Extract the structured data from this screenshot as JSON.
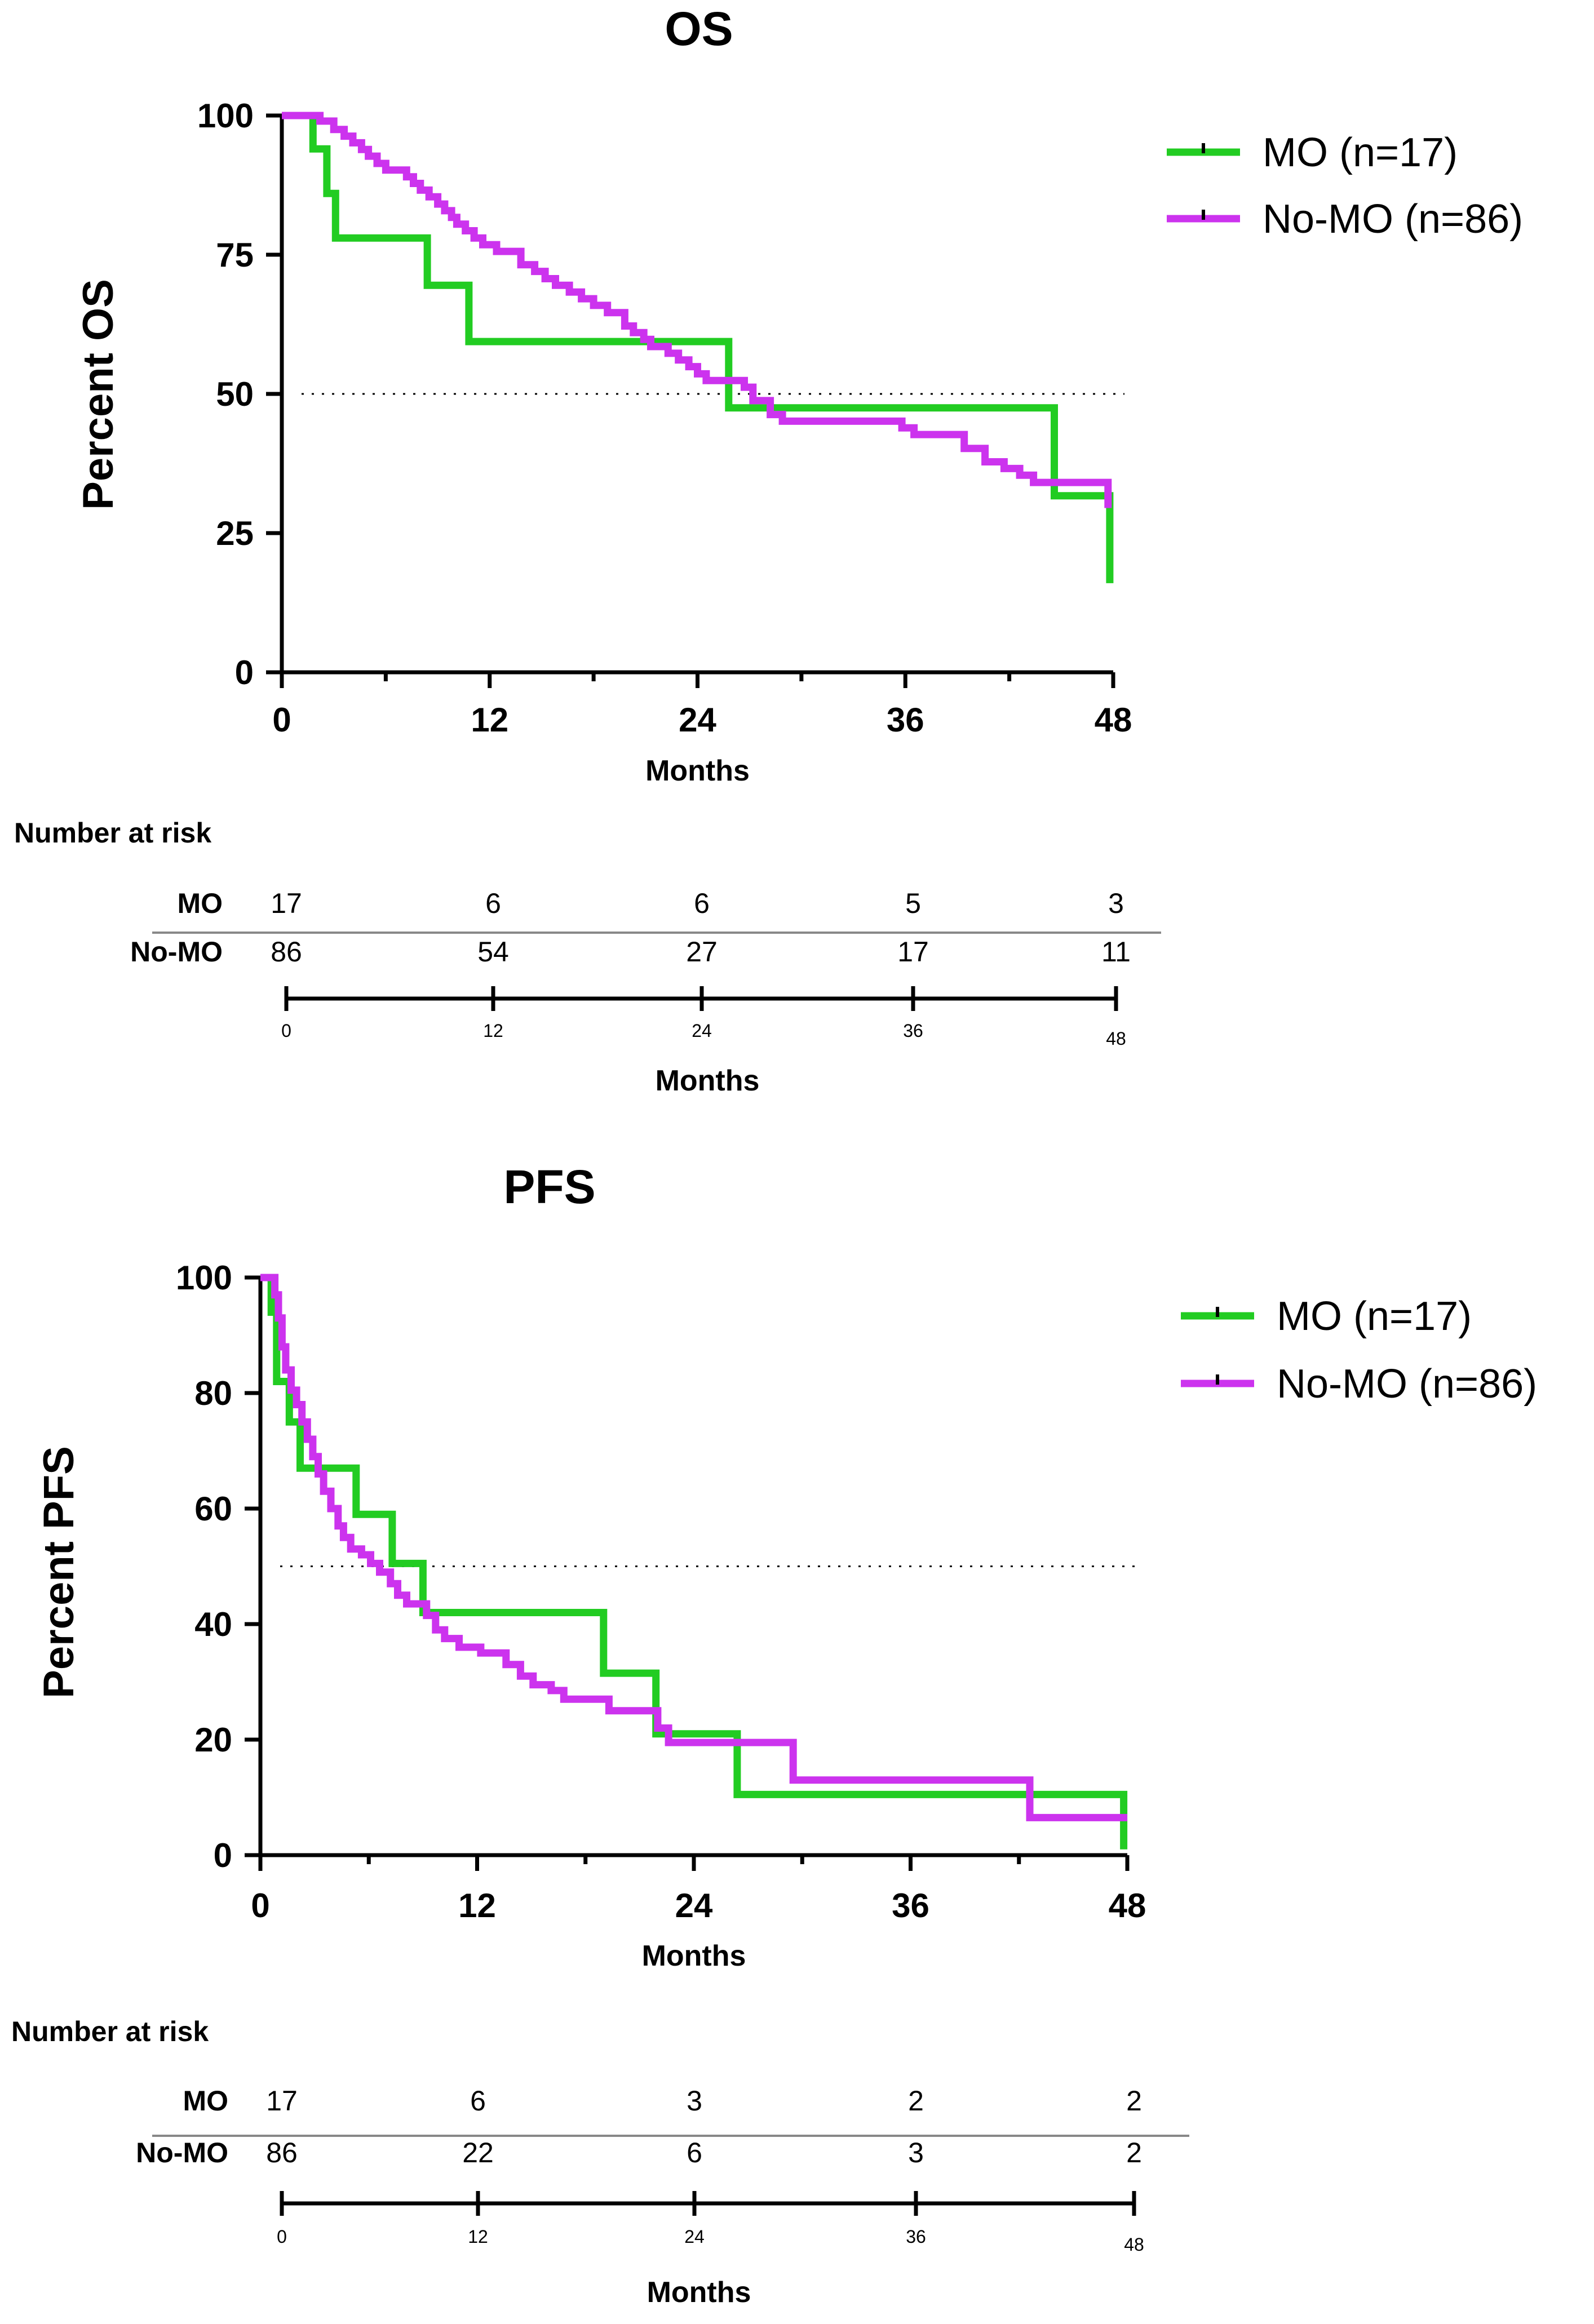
{
  "chart_data": [
    {
      "type": "line",
      "title": "OS",
      "xlabel": "Months",
      "ylabel": "Percent OS",
      "xlim": [
        0,
        48
      ],
      "ylim": [
        0,
        100
      ],
      "xticks": [
        0,
        12,
        24,
        36,
        48
      ],
      "yticks": [
        0,
        25,
        50,
        75,
        100
      ],
      "reference_line": 50,
      "legend_position": "top-right",
      "series": [
        {
          "name": "MO (n=17)",
          "color": "#22cc22",
          "steps": [
            [
              0,
              100
            ],
            [
              1.8,
              100
            ],
            [
              1.8,
              94
            ],
            [
              2.6,
              94
            ],
            [
              2.6,
              86
            ],
            [
              3.1,
              86
            ],
            [
              3.1,
              78
            ],
            [
              8.4,
              78
            ],
            [
              8.4,
              69.5
            ],
            [
              10.8,
              69.5
            ],
            [
              10.8,
              59.4
            ],
            [
              25.8,
              59.4
            ],
            [
              25.8,
              47.5
            ],
            [
              44.6,
              47.5
            ],
            [
              44.6,
              31.7
            ],
            [
              47.8,
              31.7
            ],
            [
              47.8,
              16
            ]
          ]
        },
        {
          "name": "No-MO (n=86)",
          "color": "#cc33ee",
          "steps": [
            [
              0,
              100
            ],
            [
              2.2,
              100
            ],
            [
              2.2,
              99
            ],
            [
              3,
              99
            ],
            [
              3,
              97.5
            ],
            [
              3.6,
              97.5
            ],
            [
              3.6,
              96.3
            ],
            [
              4.1,
              96.3
            ],
            [
              4.1,
              95.1
            ],
            [
              4.6,
              95.1
            ],
            [
              4.6,
              93.9
            ],
            [
              5,
              93.9
            ],
            [
              5,
              92.7
            ],
            [
              5.5,
              92.7
            ],
            [
              5.5,
              91.4
            ],
            [
              6,
              91.4
            ],
            [
              6,
              90.2
            ],
            [
              7.2,
              90.2
            ],
            [
              7.2,
              89
            ],
            [
              7.6,
              89
            ],
            [
              7.6,
              87.8
            ],
            [
              8,
              87.8
            ],
            [
              8,
              86.6
            ],
            [
              8.5,
              86.6
            ],
            [
              8.5,
              85.4
            ],
            [
              9,
              85.4
            ],
            [
              9,
              84.1
            ],
            [
              9.4,
              84.1
            ],
            [
              9.4,
              82.9
            ],
            [
              9.8,
              82.9
            ],
            [
              9.8,
              81.7
            ],
            [
              10.1,
              81.7
            ],
            [
              10.1,
              80.5
            ],
            [
              10.6,
              80.5
            ],
            [
              10.6,
              79.3
            ],
            [
              11.1,
              79.3
            ],
            [
              11.1,
              78
            ],
            [
              11.6,
              78
            ],
            [
              11.6,
              76.8
            ],
            [
              12.4,
              76.8
            ],
            [
              12.4,
              75.6
            ],
            [
              13.8,
              75.6
            ],
            [
              13.8,
              73.2
            ],
            [
              14.6,
              73.2
            ],
            [
              14.6,
              72
            ],
            [
              15.2,
              72
            ],
            [
              15.2,
              70.7
            ],
            [
              15.8,
              70.7
            ],
            [
              15.8,
              69.5
            ],
            [
              16.6,
              69.5
            ],
            [
              16.6,
              68.3
            ],
            [
              17.3,
              68.3
            ],
            [
              17.3,
              67.1
            ],
            [
              18,
              67.1
            ],
            [
              18,
              65.9
            ],
            [
              18.8,
              65.9
            ],
            [
              18.8,
              64.6
            ],
            [
              19.8,
              64.6
            ],
            [
              19.8,
              62.2
            ],
            [
              20.3,
              62.2
            ],
            [
              20.3,
              61
            ],
            [
              20.9,
              61
            ],
            [
              20.9,
              59.8
            ],
            [
              21.3,
              59.8
            ],
            [
              21.3,
              58.5
            ],
            [
              22.3,
              58.5
            ],
            [
              22.3,
              57.3
            ],
            [
              22.9,
              57.3
            ],
            [
              22.9,
              56.1
            ],
            [
              23.5,
              56.1
            ],
            [
              23.5,
              54.9
            ],
            [
              24,
              54.9
            ],
            [
              24,
              53.6
            ],
            [
              24.5,
              53.6
            ],
            [
              24.5,
              52.4
            ],
            [
              26.7,
              52.4
            ],
            [
              26.7,
              51.2
            ],
            [
              27.2,
              51.2
            ],
            [
              27.2,
              48.8
            ],
            [
              28.2,
              48.8
            ],
            [
              28.2,
              46.3
            ],
            [
              28.9,
              46.3
            ],
            [
              28.9,
              45.1
            ],
            [
              35.8,
              45.1
            ],
            [
              35.8,
              43.9
            ],
            [
              36.5,
              43.9
            ],
            [
              36.5,
              42.7
            ],
            [
              39.4,
              42.7
            ],
            [
              39.4,
              40.2
            ],
            [
              40.6,
              40.2
            ],
            [
              40.6,
              37.8
            ],
            [
              41.7,
              37.8
            ],
            [
              41.7,
              36.6
            ],
            [
              42.6,
              36.6
            ],
            [
              42.6,
              35.4
            ],
            [
              43.4,
              35.4
            ],
            [
              43.4,
              34.1
            ],
            [
              47.7,
              34.1
            ],
            [
              47.7,
              29.5
            ]
          ]
        }
      ],
      "risk_table": {
        "heading": "Number at risk",
        "times": [
          0,
          12,
          24,
          36,
          48
        ],
        "rows": [
          {
            "name": "MO",
            "values": [
              "17",
              "6",
              "6",
              "5",
              "3"
            ]
          },
          {
            "name": "No-MO",
            "values": [
              "86",
              "54",
              "27",
              "17",
              "11"
            ]
          }
        ],
        "axis_ticks": [
          "0",
          "12",
          "24",
          "36",
          "48"
        ],
        "xlabel": "Months"
      }
    },
    {
      "type": "line",
      "title": "PFS",
      "xlabel": "Months",
      "ylabel": "Percent PFS",
      "xlim": [
        0,
        48
      ],
      "ylim": [
        0,
        100
      ],
      "xticks": [
        0,
        12,
        24,
        36,
        48
      ],
      "yticks": [
        0,
        20,
        40,
        60,
        80,
        100
      ],
      "reference_line": 50,
      "legend_position": "top-right",
      "series": [
        {
          "name": "MO (n=17)",
          "color": "#22cc22",
          "steps": [
            [
              0,
              100
            ],
            [
              0.6,
              100
            ],
            [
              0.6,
              94
            ],
            [
              0.9,
              94
            ],
            [
              0.9,
              82
            ],
            [
              1.6,
              82
            ],
            [
              1.6,
              75
            ],
            [
              2.2,
              75
            ],
            [
              2.2,
              67
            ],
            [
              5.3,
              67
            ],
            [
              5.3,
              59
            ],
            [
              7.3,
              59
            ],
            [
              7.3,
              50.5
            ],
            [
              9,
              50.5
            ],
            [
              9,
              42
            ],
            [
              19,
              42
            ],
            [
              19,
              31.5
            ],
            [
              21.9,
              31.5
            ],
            [
              21.9,
              21
            ],
            [
              26.4,
              21
            ],
            [
              26.4,
              10.5
            ],
            [
              47.8,
              10.5
            ],
            [
              47.8,
              1
            ]
          ]
        },
        {
          "name": "No-MO (n=86)",
          "color": "#cc33ee",
          "steps": [
            [
              0,
              100
            ],
            [
              0.8,
              100
            ],
            [
              0.8,
              97
            ],
            [
              1,
              97
            ],
            [
              1,
              93
            ],
            [
              1.2,
              93
            ],
            [
              1.2,
              88
            ],
            [
              1.4,
              88
            ],
            [
              1.4,
              84
            ],
            [
              1.7,
              84
            ],
            [
              1.7,
              80.5
            ],
            [
              2,
              80.5
            ],
            [
              2,
              78
            ],
            [
              2.3,
              78
            ],
            [
              2.3,
              75
            ],
            [
              2.6,
              75
            ],
            [
              2.6,
              72
            ],
            [
              2.9,
              72
            ],
            [
              2.9,
              69
            ],
            [
              3.2,
              69
            ],
            [
              3.2,
              66
            ],
            [
              3.5,
              66
            ],
            [
              3.5,
              63
            ],
            [
              3.9,
              63
            ],
            [
              3.9,
              60
            ],
            [
              4.3,
              60
            ],
            [
              4.3,
              57
            ],
            [
              4.6,
              57
            ],
            [
              4.6,
              55
            ],
            [
              5,
              55
            ],
            [
              5,
              53
            ],
            [
              5.6,
              53
            ],
            [
              5.6,
              52
            ],
            [
              6.1,
              52
            ],
            [
              6.1,
              50.5
            ],
            [
              6.6,
              50.5
            ],
            [
              6.6,
              49
            ],
            [
              7.2,
              49
            ],
            [
              7.2,
              47
            ],
            [
              7.6,
              47
            ],
            [
              7.6,
              45
            ],
            [
              8.1,
              45
            ],
            [
              8.1,
              43.5
            ],
            [
              9.2,
              43.5
            ],
            [
              9.2,
              41.5
            ],
            [
              9.7,
              41.5
            ],
            [
              9.7,
              39
            ],
            [
              10.2,
              39
            ],
            [
              10.2,
              37.5
            ],
            [
              11,
              37.5
            ],
            [
              11,
              36
            ],
            [
              12.2,
              36
            ],
            [
              12.2,
              35
            ],
            [
              13.6,
              35
            ],
            [
              13.6,
              33
            ],
            [
              14.4,
              33
            ],
            [
              14.4,
              31
            ],
            [
              15.1,
              31
            ],
            [
              15.1,
              29.5
            ],
            [
              16.1,
              29.5
            ],
            [
              16.1,
              28.5
            ],
            [
              16.8,
              28.5
            ],
            [
              16.8,
              27
            ],
            [
              19.3,
              27
            ],
            [
              19.3,
              25
            ],
            [
              22,
              25
            ],
            [
              22,
              22
            ],
            [
              22.6,
              22
            ],
            [
              22.6,
              19.5
            ],
            [
              29.5,
              19.5
            ],
            [
              29.5,
              13
            ],
            [
              42.6,
              13
            ],
            [
              42.6,
              6.5
            ],
            [
              48,
              6.5
            ]
          ]
        }
      ],
      "risk_table": {
        "heading": "Number at risk",
        "times": [
          0,
          12,
          24,
          36,
          48
        ],
        "rows": [
          {
            "name": "MO",
            "values": [
              "17",
              "6",
              "3",
              "2",
              "2"
            ]
          },
          {
            "name": "No-MO",
            "values": [
              "86",
              "22",
              "6",
              "3",
              "2"
            ]
          }
        ],
        "axis_ticks": [
          "0",
          "12",
          "24",
          "36",
          "48"
        ],
        "xlabel": "Months"
      }
    }
  ]
}
